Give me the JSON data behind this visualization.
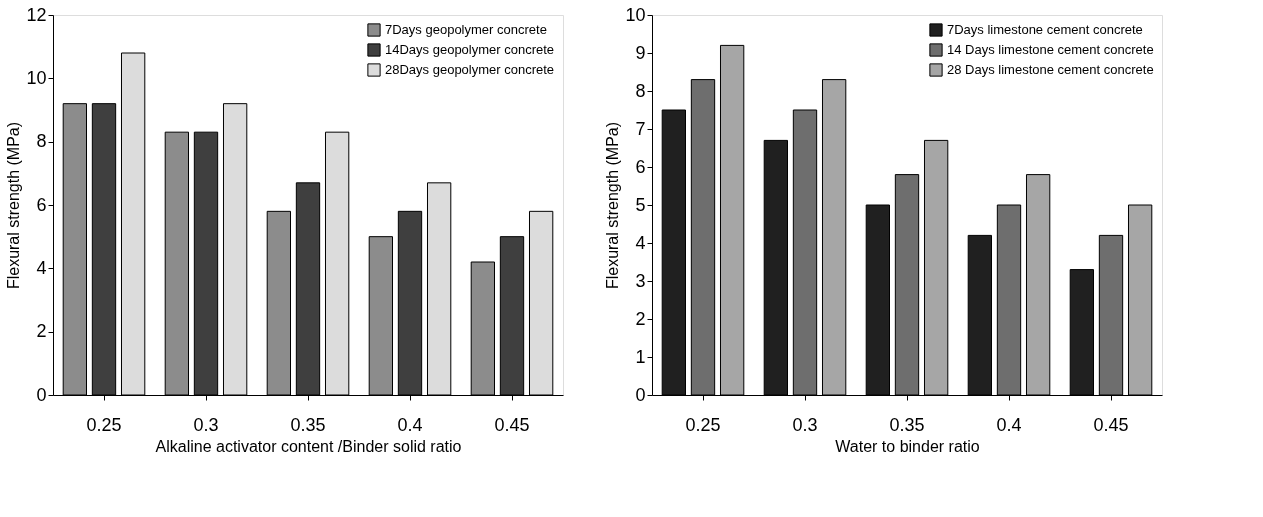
{
  "chart_data": [
    {
      "type": "bar",
      "xlabel": "Alkaline activator content /Binder solid ratio",
      "ylabel": "Flexural strength (MPa)",
      "categories": [
        "0.25",
        "0.3",
        "0.35",
        "0.4",
        "0.45"
      ],
      "ylim": [
        0,
        12
      ],
      "yticks": [
        0,
        2,
        4,
        6,
        8,
        10,
        12
      ],
      "legend": "top right",
      "series": [
        {
          "name": "7Days geopolymer concrete",
          "color": "#8c8c8c",
          "values": [
            9.2,
            8.3,
            5.8,
            5.0,
            4.2
          ]
        },
        {
          "name": "14Days geopolymer concrete",
          "color": "#3f3f3f",
          "values": [
            9.2,
            8.3,
            6.7,
            5.8,
            5.0
          ]
        },
        {
          "name": "28Days geopolymer concrete",
          "color": "#dcdcdc",
          "values": [
            10.8,
            9.2,
            8.3,
            6.7,
            5.8
          ]
        }
      ]
    },
    {
      "type": "bar",
      "xlabel": "Water to binder ratio",
      "ylabel": "Flexural  strength (MPa)",
      "categories": [
        "0.25",
        "0.3",
        "0.35",
        "0.4",
        "0.45"
      ],
      "ylim": [
        0,
        10
      ],
      "yticks": [
        0,
        1,
        2,
        3,
        4,
        5,
        6,
        7,
        8,
        9,
        10
      ],
      "legend": "top right",
      "series": [
        {
          "name": "7Days limestone cement concrete",
          "color": "#202020",
          "values": [
            7.5,
            6.7,
            5.0,
            4.2,
            3.3
          ]
        },
        {
          "name": "14 Days limestone cement concrete",
          "color": "#6e6e6e",
          "values": [
            8.3,
            7.5,
            5.8,
            5.0,
            4.2
          ]
        },
        {
          "name": "28 Days limestone cement concrete",
          "color": "#a6a6a6",
          "values": [
            9.2,
            8.3,
            6.7,
            5.8,
            5.0
          ]
        }
      ]
    }
  ]
}
